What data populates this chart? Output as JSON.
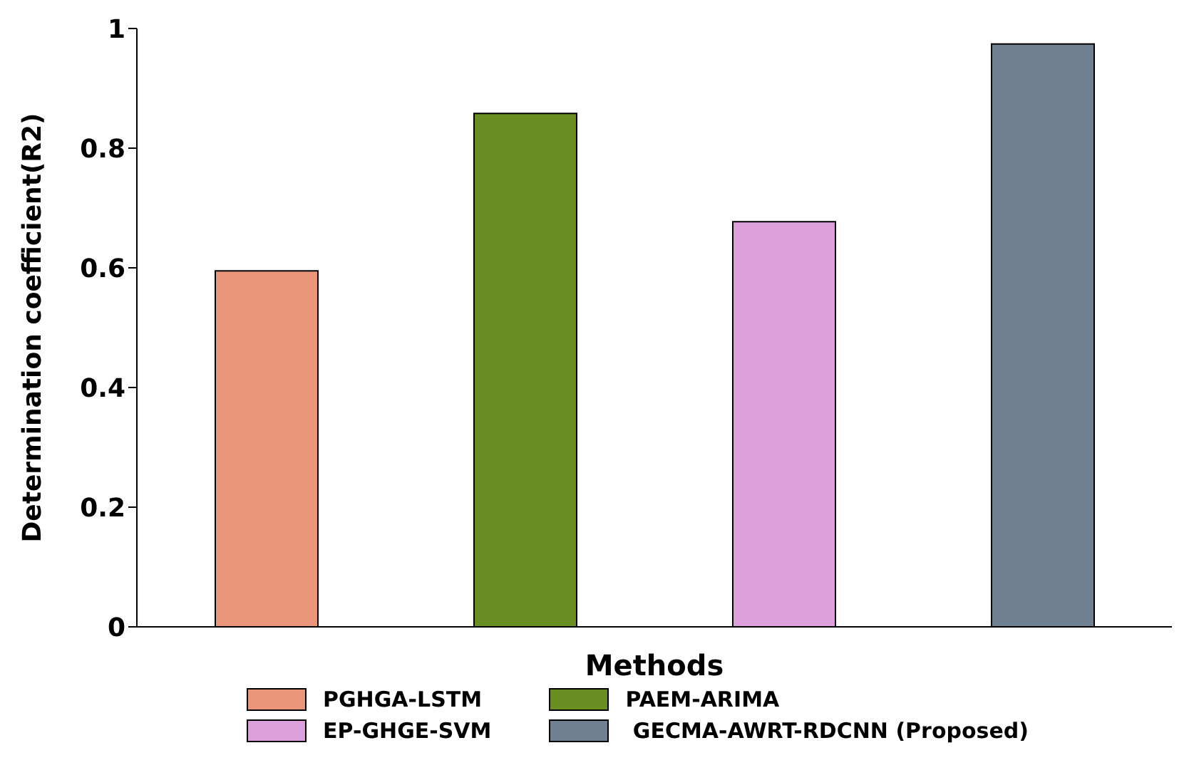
{
  "chart_data": {
    "type": "bar",
    "xlabel": "Methods",
    "ylabel": "Determination coefficient(R2)",
    "categories": [
      null,
      null,
      null,
      null
    ],
    "series": [
      {
        "name": "PGHGA-LSTM",
        "color": "#e9967a",
        "values": [
          0.595,
          null,
          null,
          null
        ]
      },
      {
        "name": "PAEM-ARIMA",
        "color": "#6b8e23",
        "values": [
          null,
          0.858,
          null,
          null
        ]
      },
      {
        "name": "EP-GHGE-SVM",
        "color": "#dda0dd",
        "values": [
          null,
          null,
          0.677,
          null
        ]
      },
      {
        "name": " GECMA-AWRT-RDCNN (Proposed)",
        "color": "#708090",
        "values": [
          null,
          null,
          null,
          0.974
        ]
      }
    ],
    "ylim": [
      0,
      1
    ],
    "yticks": [
      0,
      0.2,
      0.4,
      0.6,
      0.8,
      1
    ],
    "grid": false,
    "legend": "bottom"
  }
}
